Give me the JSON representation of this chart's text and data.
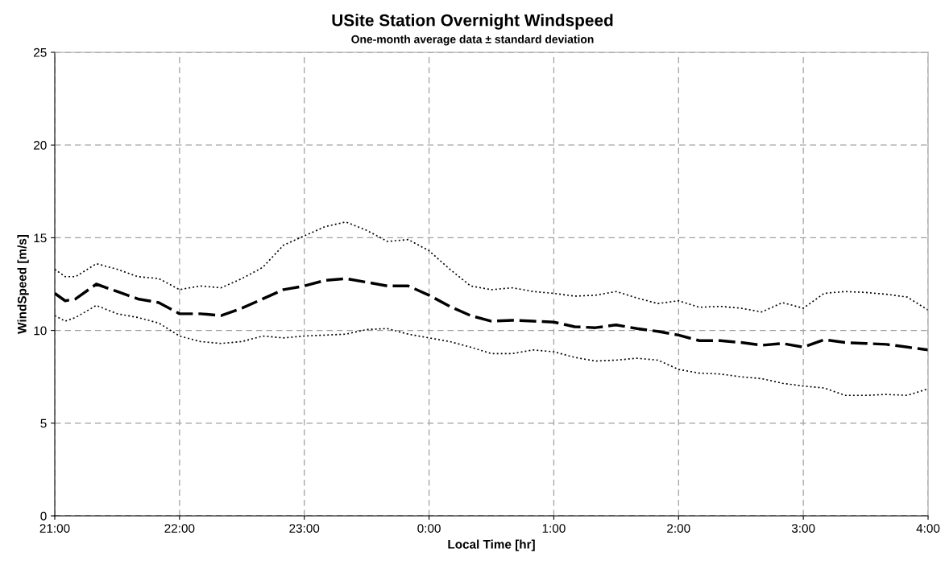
{
  "chart_data": {
    "type": "line",
    "title": "USite Station Overnight Windspeed",
    "subtitle": "One-month average data ± standard deviation",
    "xlabel": "Local Time [hr]",
    "ylabel": "WindSpeed [m/s]",
    "x": [
      "2000-01-01T21:00",
      "2000-01-01T21:05",
      "2000-01-01T21:10",
      "2000-01-01T21:20",
      "2000-01-01T21:30",
      "2000-01-01T21:40",
      "2000-01-01T21:50",
      "2000-01-01T22:00",
      "2000-01-01T22:10",
      "2000-01-01T22:20",
      "2000-01-01T22:30",
      "2000-01-01T22:40",
      "2000-01-01T22:50",
      "2000-01-01T23:00",
      "2000-01-01T23:10",
      "2000-01-01T23:20",
      "2000-01-01T23:30",
      "2000-01-01T23:40",
      "2000-01-01T23:50",
      "2000-01-02T00:00",
      "2000-01-02T00:10",
      "2000-01-02T00:20",
      "2000-01-02T00:30",
      "2000-01-02T00:40",
      "2000-01-02T00:50",
      "2000-01-02T01:00",
      "2000-01-02T01:10",
      "2000-01-02T01:20",
      "2000-01-02T01:30",
      "2000-01-02T01:40",
      "2000-01-02T01:50",
      "2000-01-02T02:00",
      "2000-01-02T02:10",
      "2000-01-02T02:20",
      "2000-01-02T02:30",
      "2000-01-02T02:40",
      "2000-01-02T02:50",
      "2000-01-02T03:00",
      "2000-01-02T03:10",
      "2000-01-02T03:20",
      "2000-01-02T03:30",
      "2000-01-02T03:40",
      "2000-01-02T03:50",
      "2000-01-02T04:00"
    ],
    "series": [
      {
        "color": "#000000",
        "line_style": "dashed",
        "values": [
          12.0,
          11.6,
          11.7,
          12.5,
          12.1,
          11.7,
          11.5,
          10.9,
          10.9,
          10.8,
          11.2,
          11.7,
          12.2,
          12.4,
          12.7,
          12.8,
          12.6,
          12.4,
          12.4,
          11.9,
          11.3,
          10.8,
          10.5,
          10.55,
          10.5,
          10.45,
          10.2,
          10.15,
          10.3,
          10.1,
          9.95,
          9.75,
          9.45,
          9.45,
          9.35,
          9.2,
          9.3,
          9.1,
          9.5,
          9.35,
          9.3,
          9.25,
          9.1,
          8.95
        ]
      },
      {
        "color": "#000000",
        "line_style": "dotted",
        "values": [
          13.3,
          12.9,
          12.9,
          13.6,
          13.3,
          12.9,
          12.8,
          12.2,
          12.4,
          12.3,
          12.8,
          13.4,
          14.6,
          15.1,
          15.6,
          15.85,
          15.4,
          14.8,
          14.9,
          14.3,
          13.3,
          12.4,
          12.2,
          12.3,
          12.1,
          12.0,
          11.85,
          11.9,
          12.1,
          11.75,
          11.45,
          11.6,
          11.25,
          11.3,
          11.2,
          11.0,
          11.5,
          11.2,
          12.0,
          12.1,
          12.05,
          11.95,
          11.8,
          11.1
        ]
      },
      {
        "color": "#000000",
        "line_style": "dotted",
        "values": [
          10.8,
          10.5,
          10.7,
          11.35,
          10.9,
          10.7,
          10.4,
          9.7,
          9.4,
          9.3,
          9.4,
          9.7,
          9.6,
          9.7,
          9.75,
          9.8,
          10.05,
          10.1,
          9.8,
          9.6,
          9.4,
          9.1,
          8.75,
          8.75,
          8.95,
          8.85,
          8.55,
          8.35,
          8.4,
          8.5,
          8.4,
          7.9,
          7.7,
          7.65,
          7.5,
          7.4,
          7.15,
          7.0,
          6.9,
          6.5,
          6.5,
          6.55,
          6.5,
          6.85
        ]
      }
    ],
    "xlim": [
      "2000-01-01T21:00",
      "2000-01-02T04:00"
    ],
    "xticks": [
      {
        "value": "2000-01-01T21:00",
        "label": "21:00"
      },
      {
        "value": "2000-01-01T22:00",
        "label": "22:00"
      },
      {
        "value": "2000-01-01T23:00",
        "label": "23:00"
      },
      {
        "value": "2000-01-02T00:00",
        "label": "0:00"
      },
      {
        "value": "2000-01-02T01:00",
        "label": "1:00"
      },
      {
        "value": "2000-01-02T02:00",
        "label": "2:00"
      },
      {
        "value": "2000-01-02T03:00",
        "label": "3:00"
      },
      {
        "value": "2000-01-02T04:00",
        "label": "4:00"
      }
    ],
    "ylim": [
      0,
      25
    ],
    "yticks": [
      0,
      5,
      10,
      15,
      20,
      25
    ],
    "grid": true,
    "marker": "none"
  }
}
